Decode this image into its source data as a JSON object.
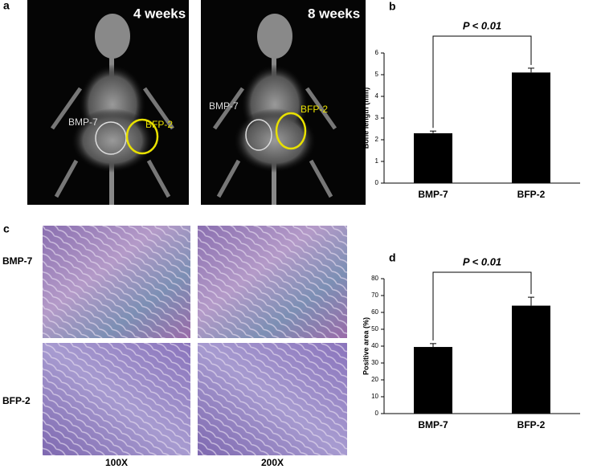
{
  "panel_labels": [
    "a",
    "b",
    "c",
    "d"
  ],
  "xray": [
    {
      "time": "4 weeks",
      "left": "BMP-7",
      "right": "BFP-2"
    },
    {
      "time": "8 weeks",
      "left": "BMP-7",
      "right": "BFP-2"
    }
  ],
  "histology": {
    "rows": [
      "BMP-7",
      "BFP-2"
    ],
    "columns": [
      "100X",
      "200X"
    ]
  },
  "chart_data": [
    {
      "type": "bar",
      "categories": [
        "BMP-7",
        "BFP-2"
      ],
      "values": [
        2.3,
        5.1
      ],
      "errors": [
        0.1,
        0.2
      ],
      "color": "#000000",
      "ylabel": "Bone length (mm)",
      "ylim": [
        0,
        6
      ],
      "yticks": [
        0,
        1,
        2,
        3,
        4,
        5,
        6
      ],
      "annotation": "P < 0.01"
    },
    {
      "type": "bar",
      "categories": [
        "BMP-7",
        "BFP-2"
      ],
      "values": [
        39.5,
        64
      ],
      "errors": [
        2,
        5
      ],
      "color": "#000000",
      "ylabel": "Positive area (%)",
      "ylim": [
        0,
        80
      ],
      "yticks": [
        0,
        10,
        20,
        30,
        40,
        50,
        60,
        70,
        80
      ],
      "annotation": "P < 0.01"
    }
  ]
}
